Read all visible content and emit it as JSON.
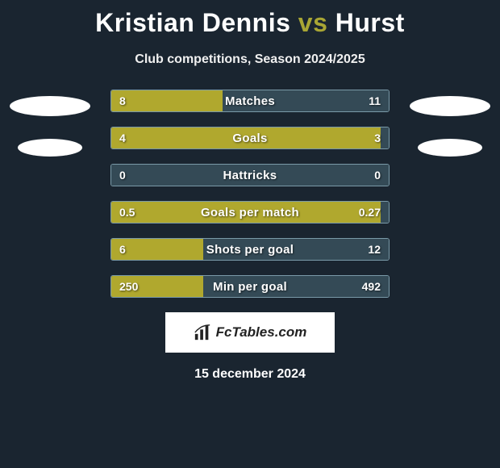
{
  "title": {
    "player1": "Kristian Dennis",
    "vs": "vs",
    "player2": "Hurst"
  },
  "subtitle": "Club competitions, Season 2024/2025",
  "colors": {
    "background": "#1a2530",
    "accent": "#a9a634",
    "left_fill": "#b0a82e",
    "right_fill": "#344a56",
    "bar_border": "#7a9aa8",
    "text": "#ffffff",
    "logo_bg": "#ffffff",
    "logo_text": "#222222"
  },
  "stats": [
    {
      "label": "Matches",
      "left_val": "8",
      "right_val": "11",
      "left_pct": 40
    },
    {
      "label": "Goals",
      "left_val": "4",
      "right_val": "3",
      "left_pct": 97
    },
    {
      "label": "Hattricks",
      "left_val": "0",
      "right_val": "0",
      "left_pct": 0
    },
    {
      "label": "Goals per match",
      "left_val": "0.5",
      "right_val": "0.27",
      "left_pct": 97
    },
    {
      "label": "Shots per goal",
      "left_val": "6",
      "right_val": "12",
      "left_pct": 33
    },
    {
      "label": "Min per goal",
      "left_val": "250",
      "right_val": "492",
      "left_pct": 33
    }
  ],
  "logo_text": "FcTables.com",
  "date": "15 december 2024"
}
